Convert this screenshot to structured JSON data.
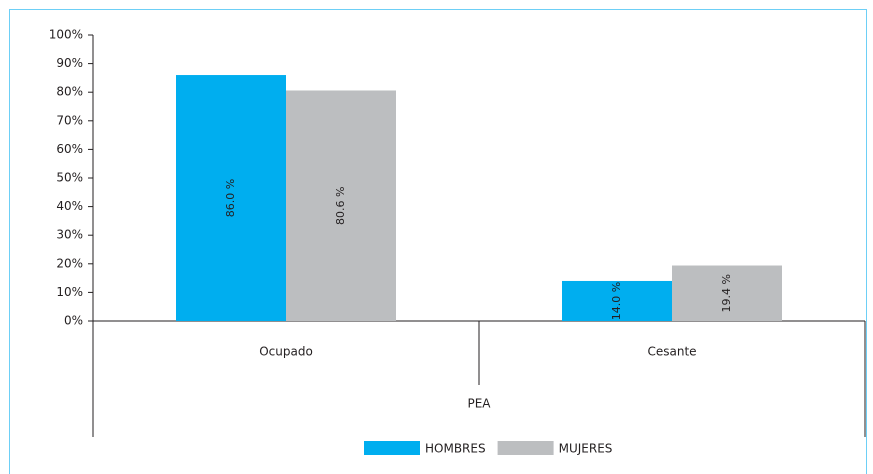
{
  "chart_data": {
    "type": "bar",
    "categories": [
      "Ocupado",
      "Cesante"
    ],
    "group_label": "PEA",
    "series": [
      {
        "name": "HOMBRES",
        "color": "#00aeef",
        "values": [
          86.0,
          14.0
        ],
        "value_labels": [
          "86.0 %",
          "14.0 %"
        ]
      },
      {
        "name": "MUJERES",
        "color": "#bcbec0",
        "values": [
          80.6,
          19.4
        ],
        "value_labels": [
          "80.6 %",
          "19.4 %"
        ]
      }
    ],
    "ylim": [
      0,
      100
    ],
    "yticks": [
      {
        "value": 0,
        "label": "0%"
      },
      {
        "value": 10,
        "label": "10%"
      },
      {
        "value": 20,
        "label": "20%"
      },
      {
        "value": 30,
        "label": "30%"
      },
      {
        "value": 40,
        "label": "40%"
      },
      {
        "value": 50,
        "label": "50%"
      },
      {
        "value": 60,
        "label": "60%"
      },
      {
        "value": 70,
        "label": "70%"
      },
      {
        "value": 80,
        "label": "80%"
      },
      {
        "value": 90,
        "label": "90%"
      },
      {
        "value": 100,
        "label": "100%"
      }
    ],
    "legend": "bottom"
  }
}
